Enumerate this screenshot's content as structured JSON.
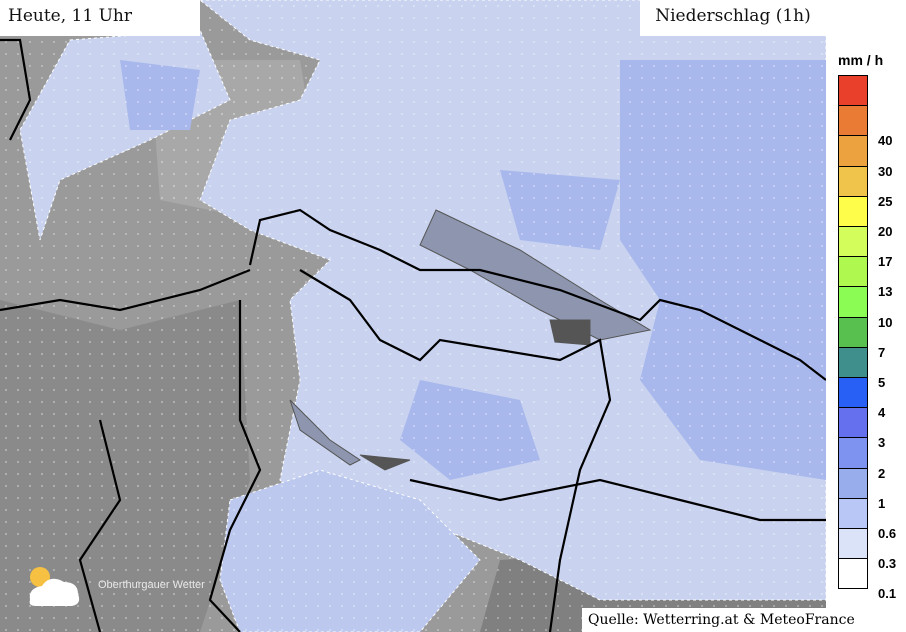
{
  "header": {
    "time_label": "Heute, 11 Uhr",
    "layer_label": "Niederschlag (1h)"
  },
  "legend": {
    "unit": "mm / h",
    "levels": [
      {
        "label": "",
        "color": "#e8402a"
      },
      {
        "label": "40",
        "color": "#ea7b35"
      },
      {
        "label": "30",
        "color": "#eda240"
      },
      {
        "label": "25",
        "color": "#f0c34a"
      },
      {
        "label": "20",
        "color": "#fefe4a"
      },
      {
        "label": "17",
        "color": "#d3fd5b"
      },
      {
        "label": "13",
        "color": "#aef84f"
      },
      {
        "label": "10",
        "color": "#8bfc54"
      },
      {
        "label": "7",
        "color": "#58c04f"
      },
      {
        "label": "5",
        "color": "#3f908c"
      },
      {
        "label": "4",
        "color": "#285ff5"
      },
      {
        "label": "3",
        "color": "#6470ee"
      },
      {
        "label": "2",
        "color": "#7d93ef"
      },
      {
        "label": "1",
        "color": "#97adec"
      },
      {
        "label": "0.6",
        "color": "#b9c7f6"
      },
      {
        "label": "0.3",
        "color": "#dbe3f8"
      },
      {
        "label": "0.1",
        "color": "#ffffff"
      }
    ]
  },
  "source": "Quelle: Wetterring.at & MeteoFrance",
  "logo": {
    "text": "Oberthurgauer Wetter",
    "icon": "sun-cloud-rain-icon"
  }
}
